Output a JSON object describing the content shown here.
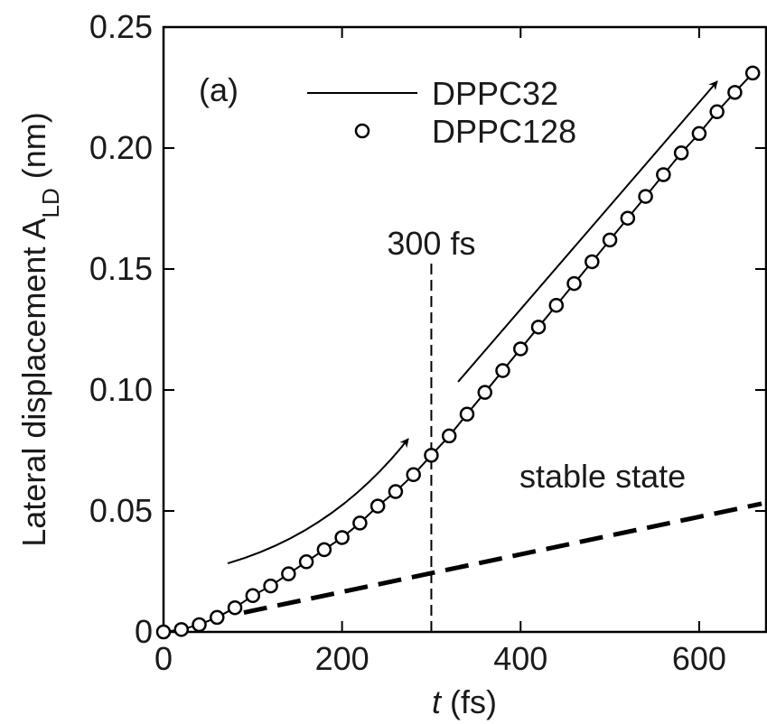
{
  "chart_data": {
    "type": "line",
    "panel_label": "(a)",
    "xlabel_symbol": "t",
    "xlabel_unit": "(fs)",
    "ylabel_main": "Lateral displacement A",
    "ylabel_sub": "LD",
    "ylabel_unit": "(nm)",
    "x": [
      0,
      20,
      40,
      60,
      80,
      100,
      120,
      140,
      160,
      180,
      200,
      220,
      240,
      260,
      280,
      300,
      320,
      340,
      360,
      380,
      400,
      420,
      440,
      460,
      480,
      500,
      520,
      540,
      560,
      580,
      600,
      620,
      640,
      660
    ],
    "series": [
      {
        "name": "DPPC32",
        "style": "line",
        "color": "#000000",
        "values": [
          0,
          0.001,
          0.003,
          0.006,
          0.01,
          0.015,
          0.019,
          0.024,
          0.029,
          0.034,
          0.039,
          0.045,
          0.052,
          0.058,
          0.065,
          0.073,
          0.081,
          0.09,
          0.099,
          0.108,
          0.117,
          0.126,
          0.135,
          0.144,
          0.153,
          0.162,
          0.171,
          0.18,
          0.189,
          0.198,
          0.206,
          0.215,
          0.223,
          0.231
        ]
      },
      {
        "name": "DPPC128",
        "style": "circle",
        "color": "#000000",
        "values": [
          0,
          0.001,
          0.003,
          0.006,
          0.01,
          0.015,
          0.019,
          0.024,
          0.029,
          0.034,
          0.039,
          0.045,
          0.052,
          0.058,
          0.065,
          0.073,
          0.081,
          0.09,
          0.099,
          0.108,
          0.117,
          0.126,
          0.135,
          0.144,
          0.153,
          0.162,
          0.171,
          0.18,
          0.189,
          0.198,
          0.206,
          0.215,
          0.223,
          0.231
        ]
      }
    ],
    "reference_line": {
      "label": "stable state",
      "x": [
        90,
        670
      ],
      "values": [
        0.008,
        0.053
      ]
    },
    "vline": {
      "x": 300,
      "label": "300 fs"
    },
    "xlim": [
      0,
      675
    ],
    "xticks": [
      0,
      200,
      400,
      600
    ],
    "ylim": [
      0,
      0.25
    ],
    "yticks": [
      0,
      0.05,
      {
        "value": 0.1,
        "label": "0.10"
      },
      0.15,
      {
        "value": 0.2,
        "label": "0.20"
      },
      0.25
    ],
    "grid": false
  }
}
